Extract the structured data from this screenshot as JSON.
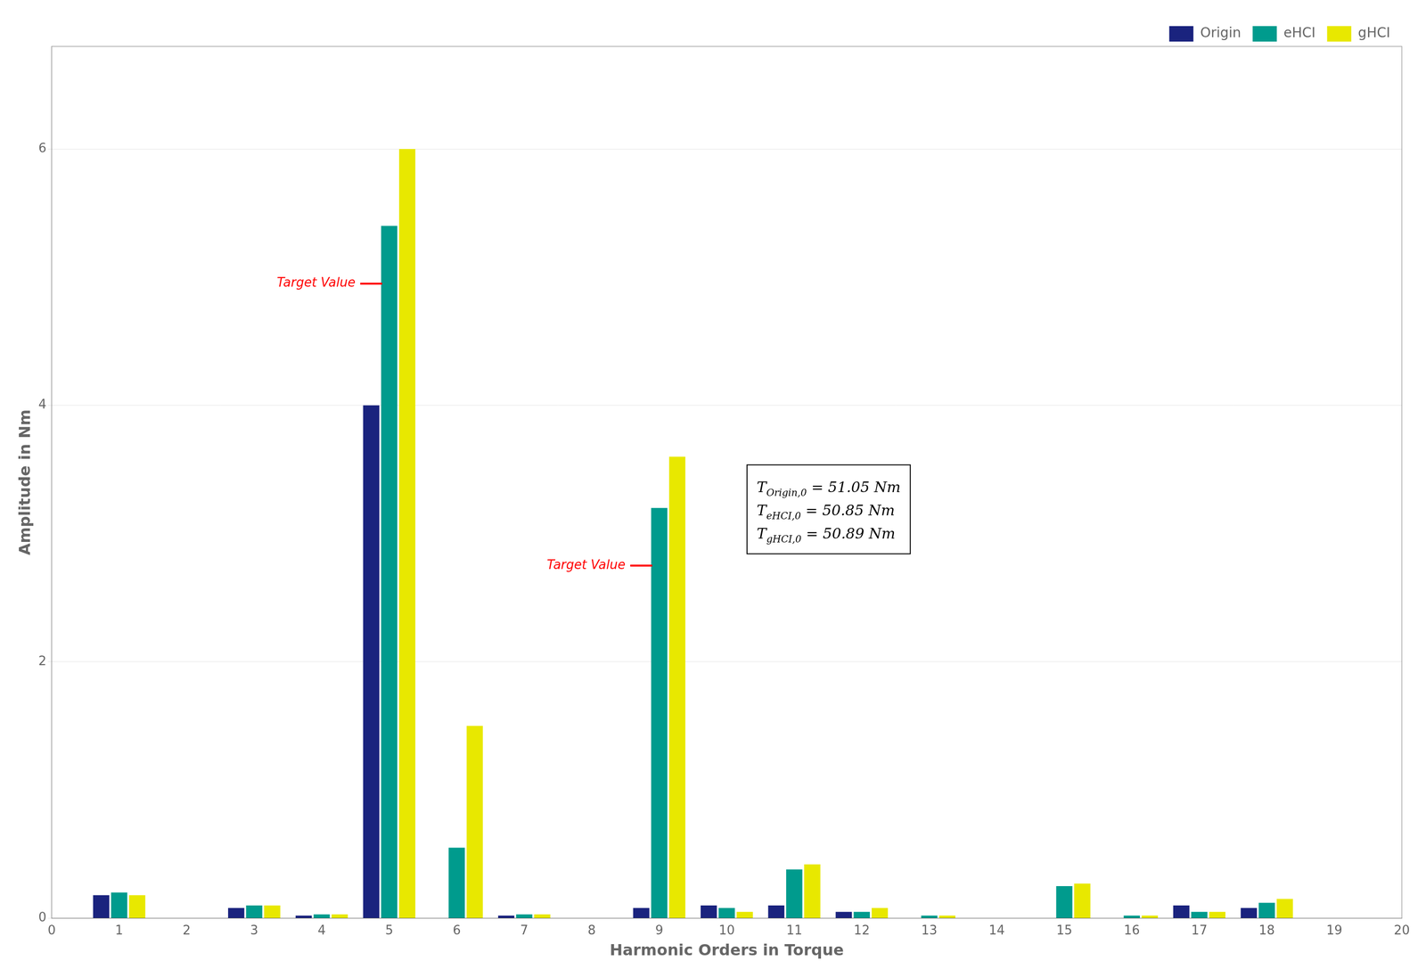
{
  "chart_data": {
    "type": "bar",
    "x": [
      1,
      2,
      3,
      4,
      5,
      6,
      7,
      8,
      9,
      10,
      11,
      12,
      13,
      14,
      15,
      16,
      17,
      18,
      19
    ],
    "series": [
      {
        "name": "Origin",
        "color": "#1a237e",
        "values": [
          0.18,
          0.0,
          0.08,
          0.02,
          4.0,
          0.0,
          0.02,
          0.0,
          0.08,
          0.1,
          0.1,
          0.05,
          0.0,
          0.0,
          0.0,
          0.0,
          0.1,
          0.08,
          0.0
        ]
      },
      {
        "name": "eHCI",
        "color": "#009b8d",
        "values": [
          0.2,
          0.0,
          0.1,
          0.03,
          5.4,
          0.55,
          0.03,
          0.0,
          3.2,
          0.08,
          0.38,
          0.05,
          0.02,
          0.0,
          0.25,
          0.02,
          0.05,
          0.12,
          0.0
        ]
      },
      {
        "name": "gHCI",
        "color": "#e8e800",
        "values": [
          0.18,
          0.0,
          0.1,
          0.03,
          6.0,
          1.5,
          0.03,
          0.0,
          3.6,
          0.05,
          0.42,
          0.08,
          0.02,
          0.0,
          0.27,
          0.02,
          0.05,
          0.15,
          0.0
        ]
      }
    ],
    "xlabel": "Harmonic Orders in Torque",
    "ylabel": "Amplitude in Nm",
    "xlim": [
      0,
      20
    ],
    "xticks": [
      0,
      1,
      2,
      3,
      4,
      5,
      6,
      7,
      8,
      9,
      10,
      11,
      12,
      13,
      14,
      15,
      16,
      17,
      18,
      19,
      20
    ],
    "ylim": [
      0,
      6.8
    ],
    "yticks": [
      0,
      2,
      4,
      6
    ],
    "grid": "y",
    "legend": "upper right",
    "target_lines": [
      {
        "x": 5,
        "value": 4.95,
        "label": "Target Value",
        "color": "#ff0000"
      },
      {
        "x": 9,
        "value": 2.75,
        "label": "Target Value",
        "color": "#ff0000"
      }
    ],
    "annotation": [
      [
        "T",
        "Origin,0",
        " = 51.05 Nm"
      ],
      [
        "T",
        "eHCI,0",
        " = 50.85 Nm"
      ],
      [
        "T",
        "gHCI,0",
        " = 50.89 Nm"
      ]
    ]
  }
}
